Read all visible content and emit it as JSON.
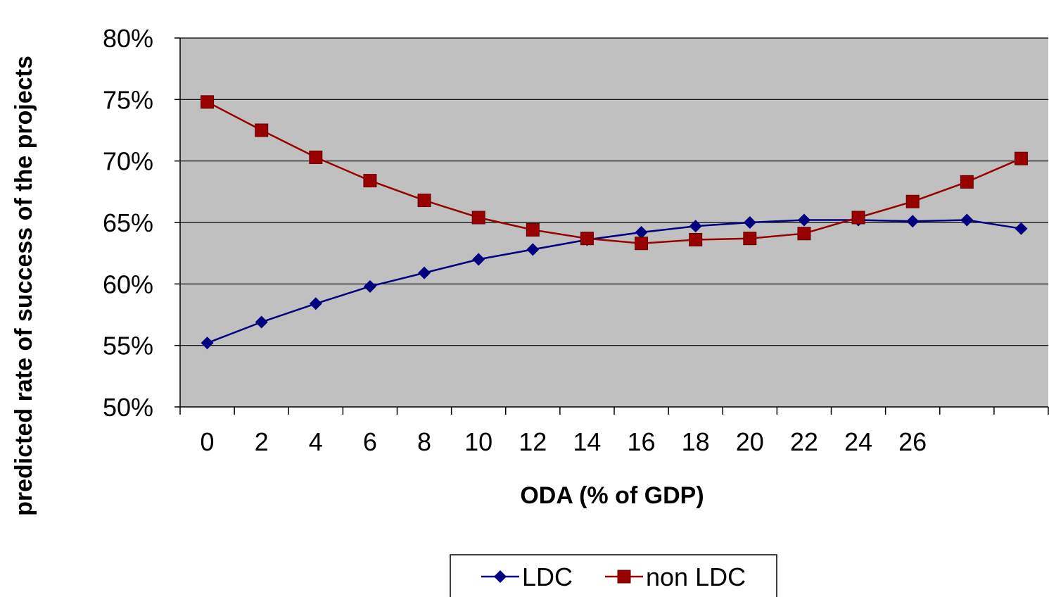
{
  "chart_data": {
    "type": "line",
    "xlabel": "ODA (% of GDP)",
    "ylabel": "predicted rate of success of the projects",
    "x": [
      0,
      2,
      4,
      6,
      8,
      10,
      12,
      14,
      16,
      18,
      20,
      22,
      24,
      26,
      28,
      30
    ],
    "x_tick_labels": [
      "0",
      "2",
      "4",
      "6",
      "8",
      "10",
      "12",
      "14",
      "16",
      "18",
      "20",
      "22",
      "24",
      "26",
      "",
      ""
    ],
    "y_tick_labels": [
      "80%",
      "75%",
      "70%",
      "65%",
      "60%",
      "55%",
      "50%"
    ],
    "ylim": [
      0.5,
      0.8
    ],
    "y_ticks": [
      0.8,
      0.75,
      0.7,
      0.65,
      0.6,
      0.55,
      0.5
    ],
    "grid": true,
    "legend_position": "bottom",
    "plot_background": "#c0c0c0",
    "series": [
      {
        "name": "LDC",
        "color": "#000080",
        "marker": "diamond",
        "values": [
          0.552,
          0.569,
          0.584,
          0.598,
          0.609,
          0.62,
          0.628,
          0.636,
          0.642,
          0.647,
          0.65,
          0.652,
          0.652,
          0.651,
          0.652,
          0.645
        ]
      },
      {
        "name": "non LDC",
        "color": "#990000",
        "marker": "square",
        "values": [
          0.748,
          0.725,
          0.703,
          0.684,
          0.668,
          0.654,
          0.644,
          0.637,
          0.633,
          0.636,
          0.637,
          0.641,
          0.654,
          0.667,
          0.683,
          0.702
        ]
      }
    ]
  }
}
